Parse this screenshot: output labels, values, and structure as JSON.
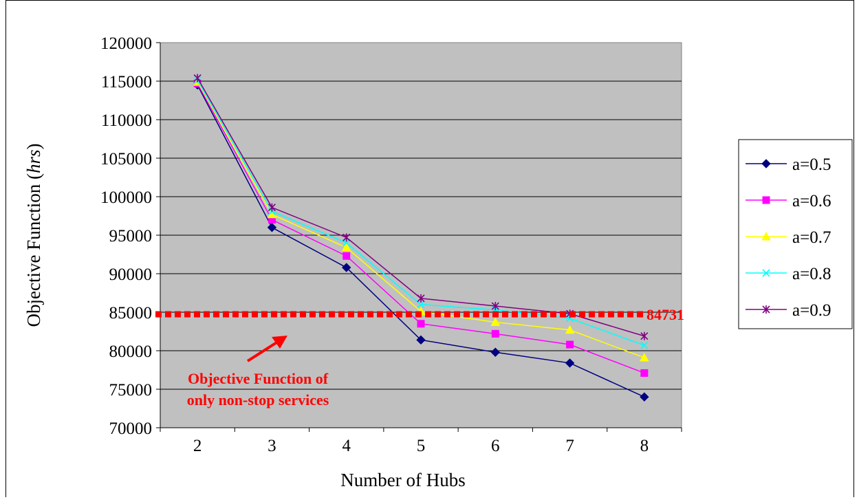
{
  "chart_data": {
    "type": "line",
    "xlabel": "Number of Hubs",
    "ylabel_prefix": "Objective Function (",
    "ylabel_unit": "hrs",
    "ylabel_suffix": ")",
    "categories": [
      "2",
      "3",
      "4",
      "5",
      "6",
      "7",
      "8"
    ],
    "ylim": [
      70000,
      120000
    ],
    "yticks": [
      70000,
      75000,
      80000,
      85000,
      90000,
      95000,
      100000,
      105000,
      110000,
      115000,
      120000
    ],
    "grid": true,
    "legend_position": "right",
    "plot_background": "#c0c0c0",
    "series": [
      {
        "name": "a=0.5",
        "marker": "diamond",
        "color": "#000080",
        "values": [
          114500,
          96000,
          90800,
          81400,
          79800,
          78400,
          74000
        ]
      },
      {
        "name": "a=0.6",
        "marker": "square",
        "color": "#ff00ff",
        "values": [
          114700,
          97000,
          92300,
          83500,
          82200,
          80800,
          77100
        ]
      },
      {
        "name": "a=0.7",
        "marker": "triangle",
        "color": "#ffff00",
        "values": [
          114900,
          97700,
          93400,
          85100,
          83700,
          82700,
          79100
        ]
      },
      {
        "name": "a=0.8",
        "marker": "x",
        "color": "#00ffff",
        "values": [
          115100,
          98100,
          94000,
          86000,
          85300,
          84200,
          80700
        ]
      },
      {
        "name": "a=0.9",
        "marker": "star",
        "color": "#800080",
        "values": [
          115400,
          98600,
          94700,
          86800,
          85800,
          84800,
          81900
        ]
      }
    ],
    "reference_line": {
      "value": 84731,
      "label": "84731",
      "color": "#ff0000"
    },
    "annotation": {
      "line1": "Objective Function of",
      "line2": "only non-stop services",
      "color": "#ff0000"
    }
  }
}
